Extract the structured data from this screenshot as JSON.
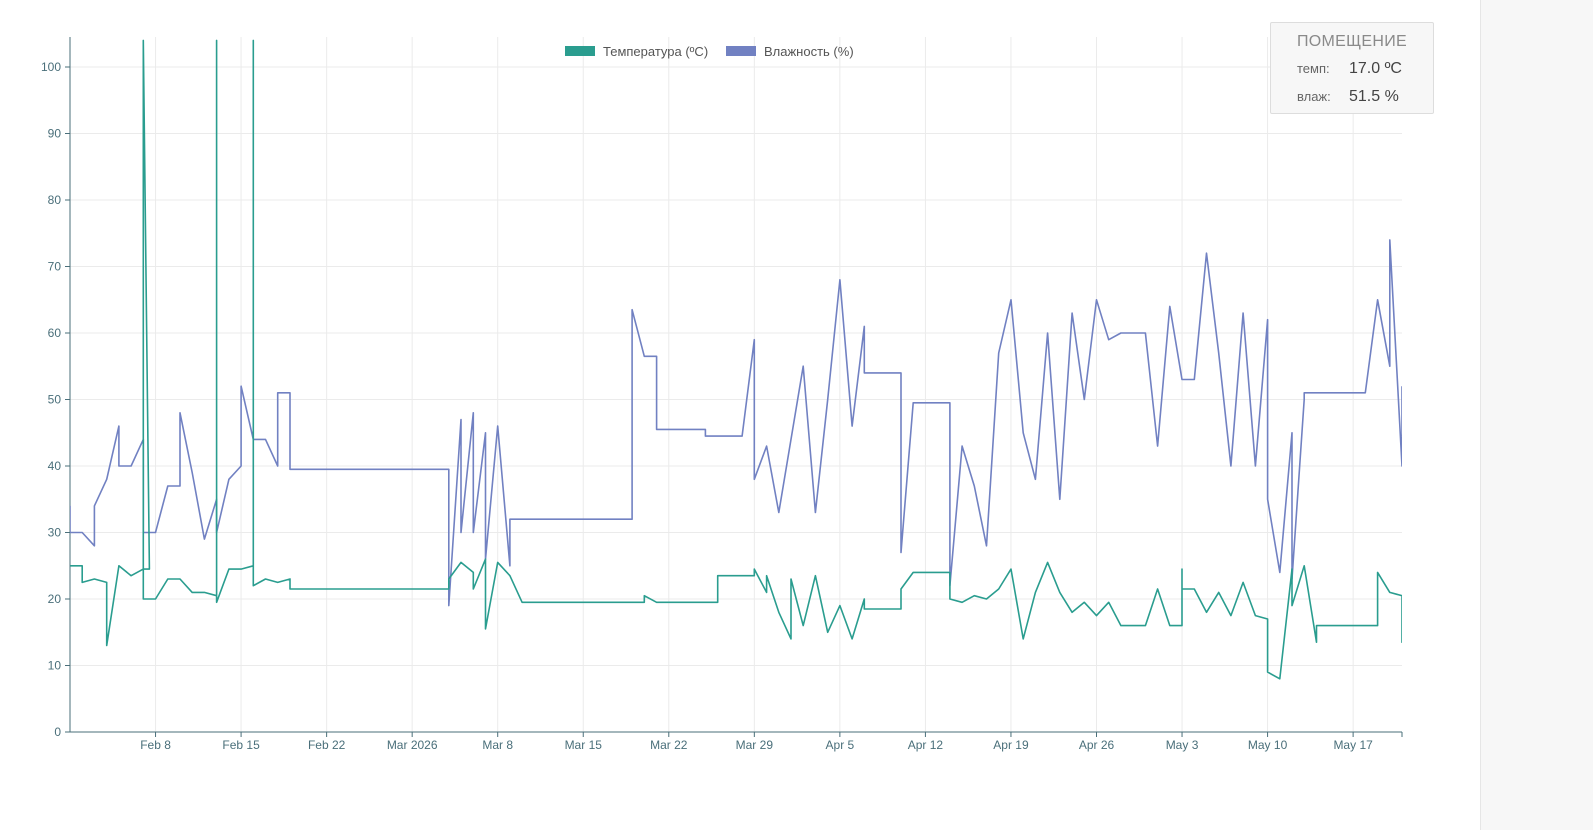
{
  "colors": {
    "temperature": "#2a9d8f",
    "humidity": "#7181c2",
    "grid": "#ebebeb",
    "axis": "#4a6f7a"
  },
  "info_box": {
    "title": "ПОМЕЩЕНИЕ",
    "temp_label": "темп:",
    "temp_value": "17.0 ºC",
    "hum_label": "влаж:",
    "hum_value": "51.5 %"
  },
  "chart_data": {
    "type": "line",
    "title": "",
    "xlabel": "",
    "ylabel": "",
    "ylim": [
      0,
      100
    ],
    "xlim": [
      "2026-02-01",
      "2026-05-21"
    ],
    "grid": true,
    "legend_position": "top-center",
    "y_ticks": [
      0,
      10,
      20,
      30,
      40,
      50,
      60,
      70,
      80,
      90,
      100
    ],
    "x_ticks": [
      {
        "date": "2026-02-08",
        "label": "Feb 8"
      },
      {
        "date": "2026-02-15",
        "label": "Feb 15"
      },
      {
        "date": "2026-02-22",
        "label": "Feb 22"
      },
      {
        "date": "2026-03-01",
        "label": "Mar 2026"
      },
      {
        "date": "2026-03-08",
        "label": "Mar 8"
      },
      {
        "date": "2026-03-15",
        "label": "Mar 15"
      },
      {
        "date": "2026-03-22",
        "label": "Mar 22"
      },
      {
        "date": "2026-03-29",
        "label": "Mar 29"
      },
      {
        "date": "2026-04-05",
        "label": "Apr 5"
      },
      {
        "date": "2026-04-12",
        "label": "Apr 12"
      },
      {
        "date": "2026-04-19",
        "label": "Apr 19"
      },
      {
        "date": "2026-04-26",
        "label": "Apr 26"
      },
      {
        "date": "2026-05-03",
        "label": "May 3"
      },
      {
        "date": "2026-05-10",
        "label": "May 10"
      },
      {
        "date": "2026-05-17",
        "label": "May 17"
      }
    ],
    "series": [
      {
        "name": "Температура (ºC)",
        "color": "#2a9d8f",
        "points": [
          [
            "2026-02-01",
            25
          ],
          [
            "2026-02-02",
            25
          ],
          [
            "2026-02-02",
            22.5
          ],
          [
            "2026-02-03",
            23
          ],
          [
            "2026-02-04",
            22.5
          ],
          [
            "2026-02-04",
            13
          ],
          [
            "2026-02-05",
            25
          ],
          [
            "2026-02-06",
            23.5
          ],
          [
            "2026-02-07",
            24.5
          ],
          [
            "2026-02-07.5",
            24.5
          ],
          [
            "2026-02-07",
            104
          ],
          [
            "2026-02-07",
            20
          ],
          [
            "2026-02-08",
            20
          ],
          [
            "2026-02-09",
            23
          ],
          [
            "2026-02-10",
            23
          ],
          [
            "2026-02-11",
            21
          ],
          [
            "2026-02-12",
            21
          ],
          [
            "2026-02-13",
            20.5
          ],
          [
            "2026-02-13",
            104
          ],
          [
            "2026-02-13",
            19.5
          ],
          [
            "2026-02-14",
            24.5
          ],
          [
            "2026-02-15",
            24.5
          ],
          [
            "2026-02-16",
            25
          ],
          [
            "2026-02-16",
            104
          ],
          [
            "2026-02-16",
            22
          ],
          [
            "2026-02-17",
            23
          ],
          [
            "2026-02-18",
            22.5
          ],
          [
            "2026-02-19",
            23
          ],
          [
            "2026-02-19",
            21.5
          ],
          [
            "2026-02-28",
            21.5
          ],
          [
            "2026-03-04",
            21.5
          ],
          [
            "2026-03-04",
            23
          ],
          [
            "2026-03-05",
            25.5
          ],
          [
            "2026-03-06",
            24
          ],
          [
            "2026-03-06",
            21.5
          ],
          [
            "2026-03-07",
            26
          ],
          [
            "2026-03-07",
            15.5
          ],
          [
            "2026-03-08",
            25.5
          ],
          [
            "2026-03-09",
            23.5
          ],
          [
            "2026-03-10",
            19.5
          ],
          [
            "2026-03-20",
            19.5
          ],
          [
            "2026-03-20",
            20.5
          ],
          [
            "2026-03-21",
            19.5
          ],
          [
            "2026-03-26",
            19.5
          ],
          [
            "2026-03-26",
            23.5
          ],
          [
            "2026-03-29",
            23.5
          ],
          [
            "2026-03-29",
            24.5
          ],
          [
            "2026-03-30",
            21
          ],
          [
            "2026-03-30",
            23.5
          ],
          [
            "2026-03-31",
            18
          ],
          [
            "2026-04-01",
            14
          ],
          [
            "2026-04-01",
            23
          ],
          [
            "2026-04-02",
            16
          ],
          [
            "2026-04-03",
            23.5
          ],
          [
            "2026-04-04",
            15
          ],
          [
            "2026-04-05",
            19
          ],
          [
            "2026-04-06",
            14
          ],
          [
            "2026-04-07",
            20
          ],
          [
            "2026-04-07",
            18.5
          ],
          [
            "2026-04-10",
            18.5
          ],
          [
            "2026-04-10",
            21.5
          ],
          [
            "2026-04-11",
            24
          ],
          [
            "2026-04-14",
            24
          ],
          [
            "2026-04-14",
            20
          ],
          [
            "2026-04-15",
            19.5
          ],
          [
            "2026-04-16",
            20.5
          ],
          [
            "2026-04-17",
            20
          ],
          [
            "2026-04-18",
            21.5
          ],
          [
            "2026-04-19",
            24.5
          ],
          [
            "2026-04-20",
            14
          ],
          [
            "2026-04-21",
            21
          ],
          [
            "2026-04-22",
            25.5
          ],
          [
            "2026-04-23",
            21
          ],
          [
            "2026-04-24",
            18
          ],
          [
            "2026-04-25",
            19.5
          ],
          [
            "2026-04-26",
            17.5
          ],
          [
            "2026-04-27",
            19.5
          ],
          [
            "2026-04-28",
            16
          ],
          [
            "2026-04-30",
            16
          ],
          [
            "2026-05-01",
            21.5
          ],
          [
            "2026-05-02",
            16
          ],
          [
            "2026-05-03",
            16
          ],
          [
            "2026-05-03",
            24.5
          ],
          [
            "2026-05-03",
            21.5
          ],
          [
            "2026-05-04",
            21.5
          ],
          [
            "2026-05-05",
            18
          ],
          [
            "2026-05-06",
            21
          ],
          [
            "2026-05-07",
            17.5
          ],
          [
            "2026-05-08",
            22.5
          ],
          [
            "2026-05-09",
            17.5
          ],
          [
            "2026-05-10",
            17
          ],
          [
            "2026-05-10",
            9
          ],
          [
            "2026-05-11",
            8
          ],
          [
            "2026-05-12",
            24.5
          ],
          [
            "2026-05-12",
            19
          ],
          [
            "2026-05-13",
            25
          ],
          [
            "2026-05-14",
            13.5
          ],
          [
            "2026-05-14",
            16
          ],
          [
            "2026-05-19",
            16
          ],
          [
            "2026-05-19",
            24
          ],
          [
            "2026-05-20",
            21
          ],
          [
            "2026-05-21",
            20.5
          ],
          [
            "2026-05-21",
            13.5
          ],
          [
            "2026-05-21",
            17
          ]
        ]
      },
      {
        "name": "Влажность (%)",
        "color": "#7181c2",
        "points": [
          [
            "2026-02-01",
            34
          ],
          [
            "2026-02-01",
            30
          ],
          [
            "2026-02-02",
            30
          ],
          [
            "2026-02-03",
            28
          ],
          [
            "2026-02-03",
            34
          ],
          [
            "2026-02-04",
            38
          ],
          [
            "2026-02-05",
            46
          ],
          [
            "2026-02-05",
            40
          ],
          [
            "2026-02-06",
            40
          ],
          [
            "2026-02-07",
            44
          ],
          [
            "2026-02-07",
            38
          ],
          [
            "2026-02-07",
            30
          ],
          [
            "2026-02-08",
            30
          ],
          [
            "2026-02-09",
            37
          ],
          [
            "2026-02-10",
            37
          ],
          [
            "2026-02-10",
            48
          ],
          [
            "2026-02-11",
            39
          ],
          [
            "2026-02-12",
            29
          ],
          [
            "2026-02-13",
            35
          ],
          [
            "2026-02-13",
            30
          ],
          [
            "2026-02-14",
            38
          ],
          [
            "2026-02-15",
            40
          ],
          [
            "2026-02-15",
            52
          ],
          [
            "2026-02-16",
            44
          ],
          [
            "2026-02-17",
            44
          ],
          [
            "2026-02-18",
            40
          ],
          [
            "2026-02-18",
            51
          ],
          [
            "2026-02-19",
            51
          ],
          [
            "2026-02-19",
            39.5
          ],
          [
            "2026-02-28",
            39.5
          ],
          [
            "2026-03-04",
            39.5
          ],
          [
            "2026-03-04",
            19
          ],
          [
            "2026-03-05",
            47
          ],
          [
            "2026-03-05",
            30
          ],
          [
            "2026-03-06",
            48
          ],
          [
            "2026-03-06",
            30
          ],
          [
            "2026-03-07",
            45
          ],
          [
            "2026-03-07",
            26
          ],
          [
            "2026-03-08",
            46
          ],
          [
            "2026-03-09",
            25
          ],
          [
            "2026-03-09",
            32
          ],
          [
            "2026-03-19",
            32
          ],
          [
            "2026-03-19",
            63.5
          ],
          [
            "2026-03-20",
            56.5
          ],
          [
            "2026-03-21",
            56.5
          ],
          [
            "2026-03-21",
            45.5
          ],
          [
            "2026-03-25",
            45.5
          ],
          [
            "2026-03-25",
            44.5
          ],
          [
            "2026-03-28",
            44.5
          ],
          [
            "2026-03-29",
            59
          ],
          [
            "2026-03-29",
            38
          ],
          [
            "2026-03-30",
            43
          ],
          [
            "2026-03-31",
            33
          ],
          [
            "2026-04-01",
            44
          ],
          [
            "2026-04-02",
            55
          ],
          [
            "2026-04-03",
            33
          ],
          [
            "2026-04-04",
            50
          ],
          [
            "2026-04-05",
            68
          ],
          [
            "2026-04-06",
            46
          ],
          [
            "2026-04-07",
            61
          ],
          [
            "2026-04-07",
            54
          ],
          [
            "2026-04-10",
            54
          ],
          [
            "2026-04-10",
            27
          ],
          [
            "2026-04-11",
            49.5
          ],
          [
            "2026-04-14",
            49.5
          ],
          [
            "2026-04-14",
            22
          ],
          [
            "2026-04-15",
            43
          ],
          [
            "2026-04-16",
            37
          ],
          [
            "2026-04-17",
            28
          ],
          [
            "2026-04-18",
            57
          ],
          [
            "2026-04-19",
            65
          ],
          [
            "2026-04-20",
            45
          ],
          [
            "2026-04-21",
            38
          ],
          [
            "2026-04-22",
            60
          ],
          [
            "2026-04-23",
            35
          ],
          [
            "2026-04-24",
            63
          ],
          [
            "2026-04-25",
            50
          ],
          [
            "2026-04-26",
            65
          ],
          [
            "2026-04-27",
            59
          ],
          [
            "2026-04-28",
            60
          ],
          [
            "2026-04-30",
            60
          ],
          [
            "2026-05-01",
            43
          ],
          [
            "2026-05-02",
            64
          ],
          [
            "2026-05-03",
            53
          ],
          [
            "2026-05-04",
            53
          ],
          [
            "2026-05-05",
            72
          ],
          [
            "2026-05-06",
            57
          ],
          [
            "2026-05-07",
            40
          ],
          [
            "2026-05-08",
            63
          ],
          [
            "2026-05-09",
            40
          ],
          [
            "2026-05-10",
            62
          ],
          [
            "2026-05-10",
            35
          ],
          [
            "2026-05-11",
            24
          ],
          [
            "2026-05-12",
            45
          ],
          [
            "2026-05-12",
            23
          ],
          [
            "2026-05-13",
            50
          ],
          [
            "2026-05-13",
            51
          ],
          [
            "2026-05-18",
            51
          ],
          [
            "2026-05-19",
            65
          ],
          [
            "2026-05-20",
            55
          ],
          [
            "2026-05-20",
            74
          ],
          [
            "2026-05-21",
            40
          ],
          [
            "2026-05-21",
            52
          ]
        ]
      }
    ]
  }
}
